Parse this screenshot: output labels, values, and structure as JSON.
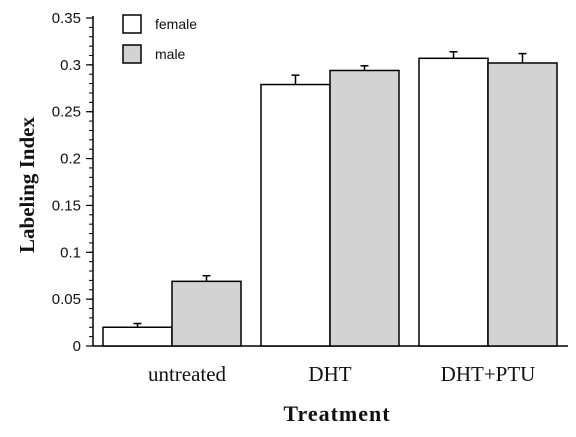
{
  "chart_data": {
    "type": "bar",
    "categories": [
      "untreated",
      "DHT",
      "DHT+PTU"
    ],
    "series": [
      {
        "name": "female",
        "color": "#ffffff",
        "values": [
          0.02,
          0.279,
          0.307
        ],
        "errors": [
          0.004,
          0.01,
          0.007
        ]
      },
      {
        "name": "male",
        "color": "#d3d3d3",
        "values": [
          0.069,
          0.294,
          0.302
        ],
        "errors": [
          0.006,
          0.005,
          0.01
        ]
      }
    ],
    "xlabel": "Treatment",
    "ylabel": "Labeling Index",
    "ylim": [
      0,
      0.35
    ],
    "yticks": [
      "0",
      "0.05",
      "0.1",
      "0.15",
      "0.2",
      "0.25",
      "0.3",
      "0.35"
    ],
    "legend_position": "top-left",
    "grid": false
  }
}
